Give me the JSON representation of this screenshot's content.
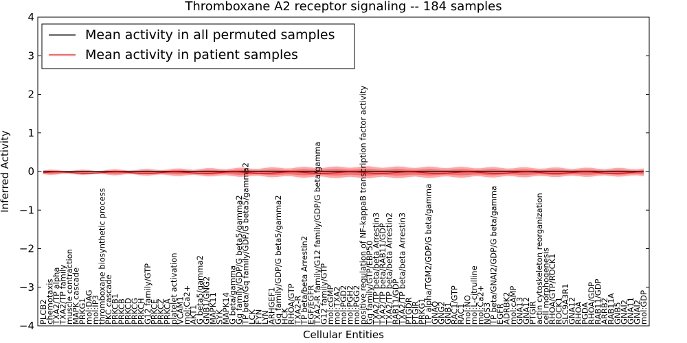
{
  "chart_data": {
    "type": "line",
    "title": "Thromboxane A2 receptor signaling -- 184 samples",
    "xlabel": "Cellular Entities",
    "ylabel": "Inferred Activity",
    "ylim": [
      -4,
      4
    ],
    "yticks": [
      -4,
      -3,
      -2,
      -1,
      0,
      1,
      2,
      3,
      4
    ],
    "legend": {
      "placement": "top-left",
      "entries": [
        {
          "label": "Mean activity in all permuted samples",
          "color": "#000000"
        },
        {
          "label": "Mean activity in patient samples",
          "color": "#ff0000"
        }
      ]
    },
    "categories": [
      "PLCB2",
      "chemotaxis",
      "TXA2/TP alpha",
      "TXA2/TP family",
      "muscle contraction",
      "MAPK cascade",
      "PRKG1",
      "mol:DAG",
      "mol:IP3",
      "thromboxane biosynthetic process",
      "PKC cascade",
      "PRKCB1",
      "PRKCB",
      "PRKCD",
      "PRKCG",
      "PRKCH",
      "G12 family/GTP",
      "PRKCE",
      "PRKCZ",
      "PRKCA",
      "platelet activation",
      "VCAM1",
      "mol:Ca2+",
      "AKT1",
      "G beta5/gamma2",
      "GNB1/GNG2",
      "MAPK11",
      "SYK",
      "MAPK14",
      "G beta/gamma",
      "Gq family/GDP/G beta5/gamma2",
      "TP beta/Gq family/GDP/G beta5/gamma2",
      "LCK",
      "FYN",
      "LYN",
      "ARHGEF1",
      "Gq family/GDP/G beta5/gamma2",
      "HCK",
      "RHOA/GTP",
      "TXA2-R",
      "TP beta/beta Arrestin2",
      "EGF/EGFR",
      "TXA2-R family/G12 family/GDP/G beta/gamma",
      "G12 family/GTP",
      "mol:cGMP",
      "mol:TXA2",
      "mol:PGD2",
      "mol:PGH2",
      "mol:PGG2",
      "positive regulation of NF-kappaB transcription factor activity",
      "Gq family/GTP/EBP50",
      "TXA2/TP beta/beta Arrestin3",
      "TXA2/TP beta/RAB11/GDP",
      "TXA2/TP beta/beta Arrestin2",
      "RAB11/GDP",
      "TXA2/TP beta/beta Arrestin3",
      "PTGDR",
      "PTGIR",
      "PRKG1",
      "TP alpha/TGM2/GDP/G beta/gamma",
      "GNAQ",
      "GNG2",
      "GNB1",
      "RAC1/GTP",
      "RAC1",
      "mol:NO",
      "mol:L-citrulline",
      "mol:Ca2+",
      "NOS3",
      "TP beta/GNAI2/GDP/G beta/gamma",
      "EGFR",
      "ADRBK2",
      "mol:cAMP",
      "GNA13",
      "GNA12",
      "PTGIR",
      "actin cytoskeleton reorganization",
      "cell morphogenesis",
      "RHOA/GTP/ROCK1",
      "ROCK1",
      "SLC9A3R1",
      "GNA12",
      "RHOA",
      "PGDA",
      "RHOA/GDP",
      "RAB11/GDP",
      "ARRB2",
      "RAB11A",
      "GNB5",
      "GNAI2",
      "GNA11",
      "GNAI2",
      "mol:GDP"
    ],
    "series": [
      {
        "name": "Mean activity in all permuted samples",
        "color": "#000000",
        "values_constant": 0.0
      },
      {
        "name": "Mean activity in patient samples",
        "color": "#ff0000",
        "values_constant": -0.03
      }
    ]
  }
}
